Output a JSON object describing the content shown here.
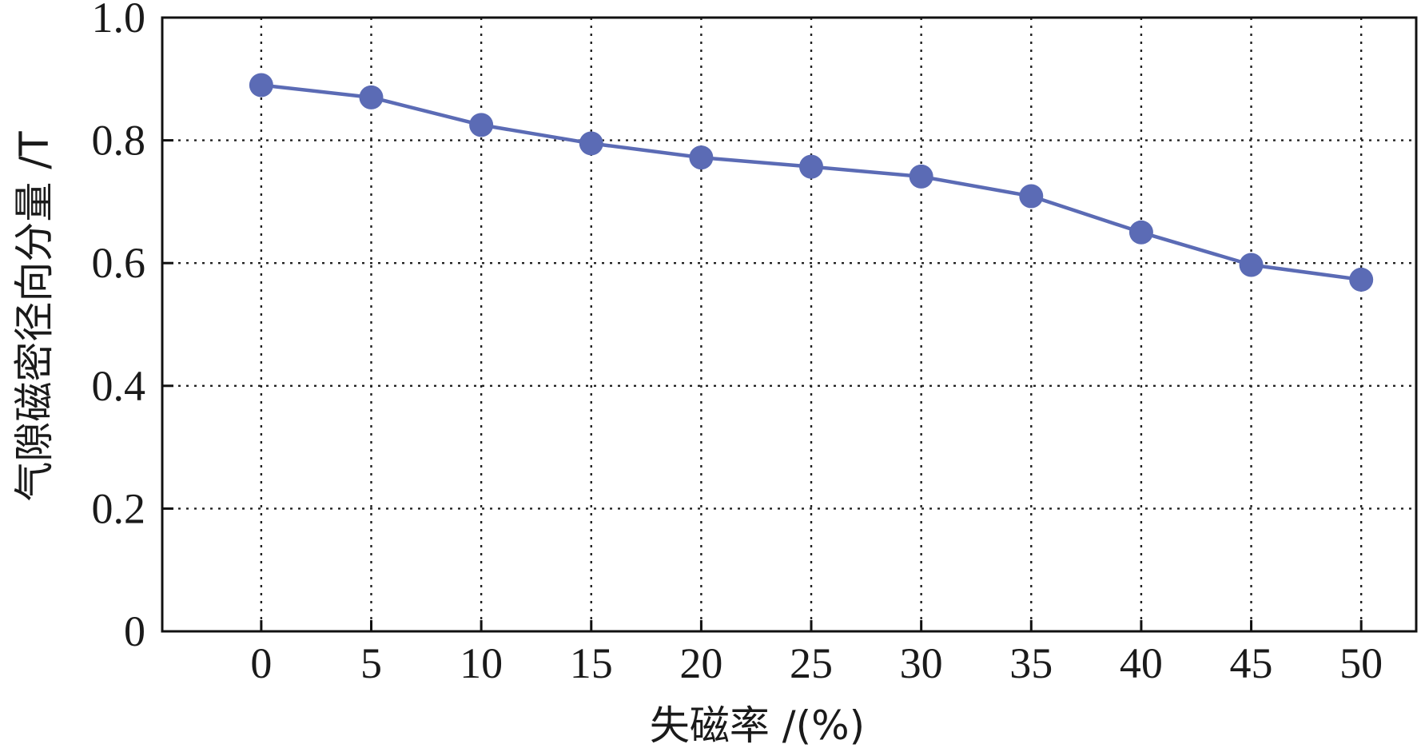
{
  "chart_data": {
    "type": "line",
    "xlabel": "失磁率 /(%)",
    "ylabel": "气隙磁密径向分量 /T",
    "xlim": [
      -4.5,
      52.5
    ],
    "ylim": [
      0,
      1.0
    ],
    "x_ticks": [
      0,
      5,
      10,
      15,
      20,
      25,
      30,
      35,
      40,
      45,
      50
    ],
    "x_tick_labels": [
      "0",
      "5",
      "10",
      "15",
      "20",
      "25",
      "30",
      "35",
      "40",
      "45",
      "50"
    ],
    "y_ticks": [
      0,
      0.2,
      0.4,
      0.6,
      0.8,
      1.0
    ],
    "y_tick_labels": [
      "0",
      "0.2",
      "0.4",
      "0.6",
      "0.8",
      "1.0"
    ],
    "grid": true,
    "series": [
      {
        "color": "#5b6bb5",
        "x": [
          0,
          5,
          10,
          15,
          20,
          25,
          30,
          35,
          40,
          45,
          50
        ],
        "y": [
          0.89,
          0.87,
          0.825,
          0.795,
          0.772,
          0.757,
          0.741,
          0.709,
          0.65,
          0.597,
          0.573
        ]
      }
    ]
  }
}
